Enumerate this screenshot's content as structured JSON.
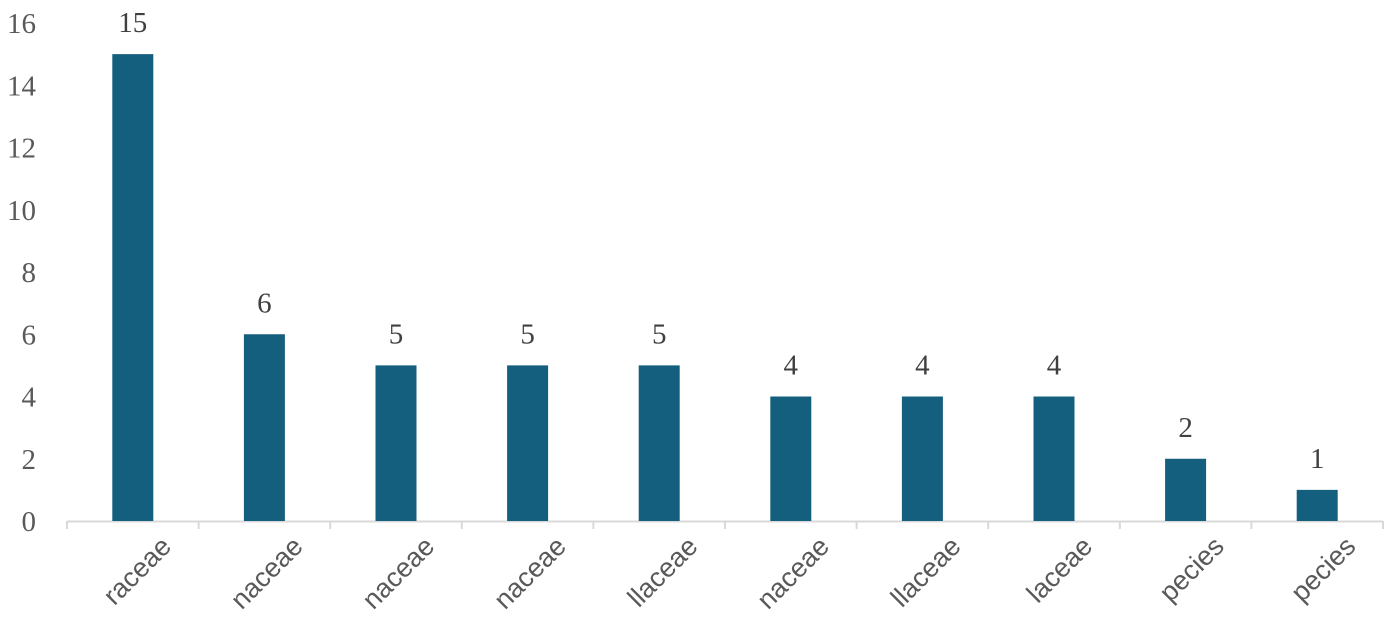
{
  "chart_data": {
    "type": "bar",
    "title": "",
    "xlabel": "",
    "ylabel": "",
    "categories": [
      "raceae",
      "naceae",
      "naceae",
      "naceae",
      "llaceae",
      "naceae",
      "llaceae",
      "laceae",
      "pecies",
      "pecies"
    ],
    "values": [
      15,
      6,
      5,
      5,
      5,
      4,
      4,
      4,
      2,
      1
    ],
    "ylim": [
      0,
      16
    ],
    "yticks": [
      "0",
      "2",
      "4",
      "6",
      "8",
      "10",
      "12",
      "14",
      "16"
    ],
    "data_labels": [
      "15",
      "6",
      "5",
      "5",
      "5",
      "4",
      "4",
      "4",
      "2",
      "1"
    ],
    "grid": false,
    "legend": "none",
    "bar_color": "#155f7e",
    "axis_color": "#d9d9d9"
  }
}
